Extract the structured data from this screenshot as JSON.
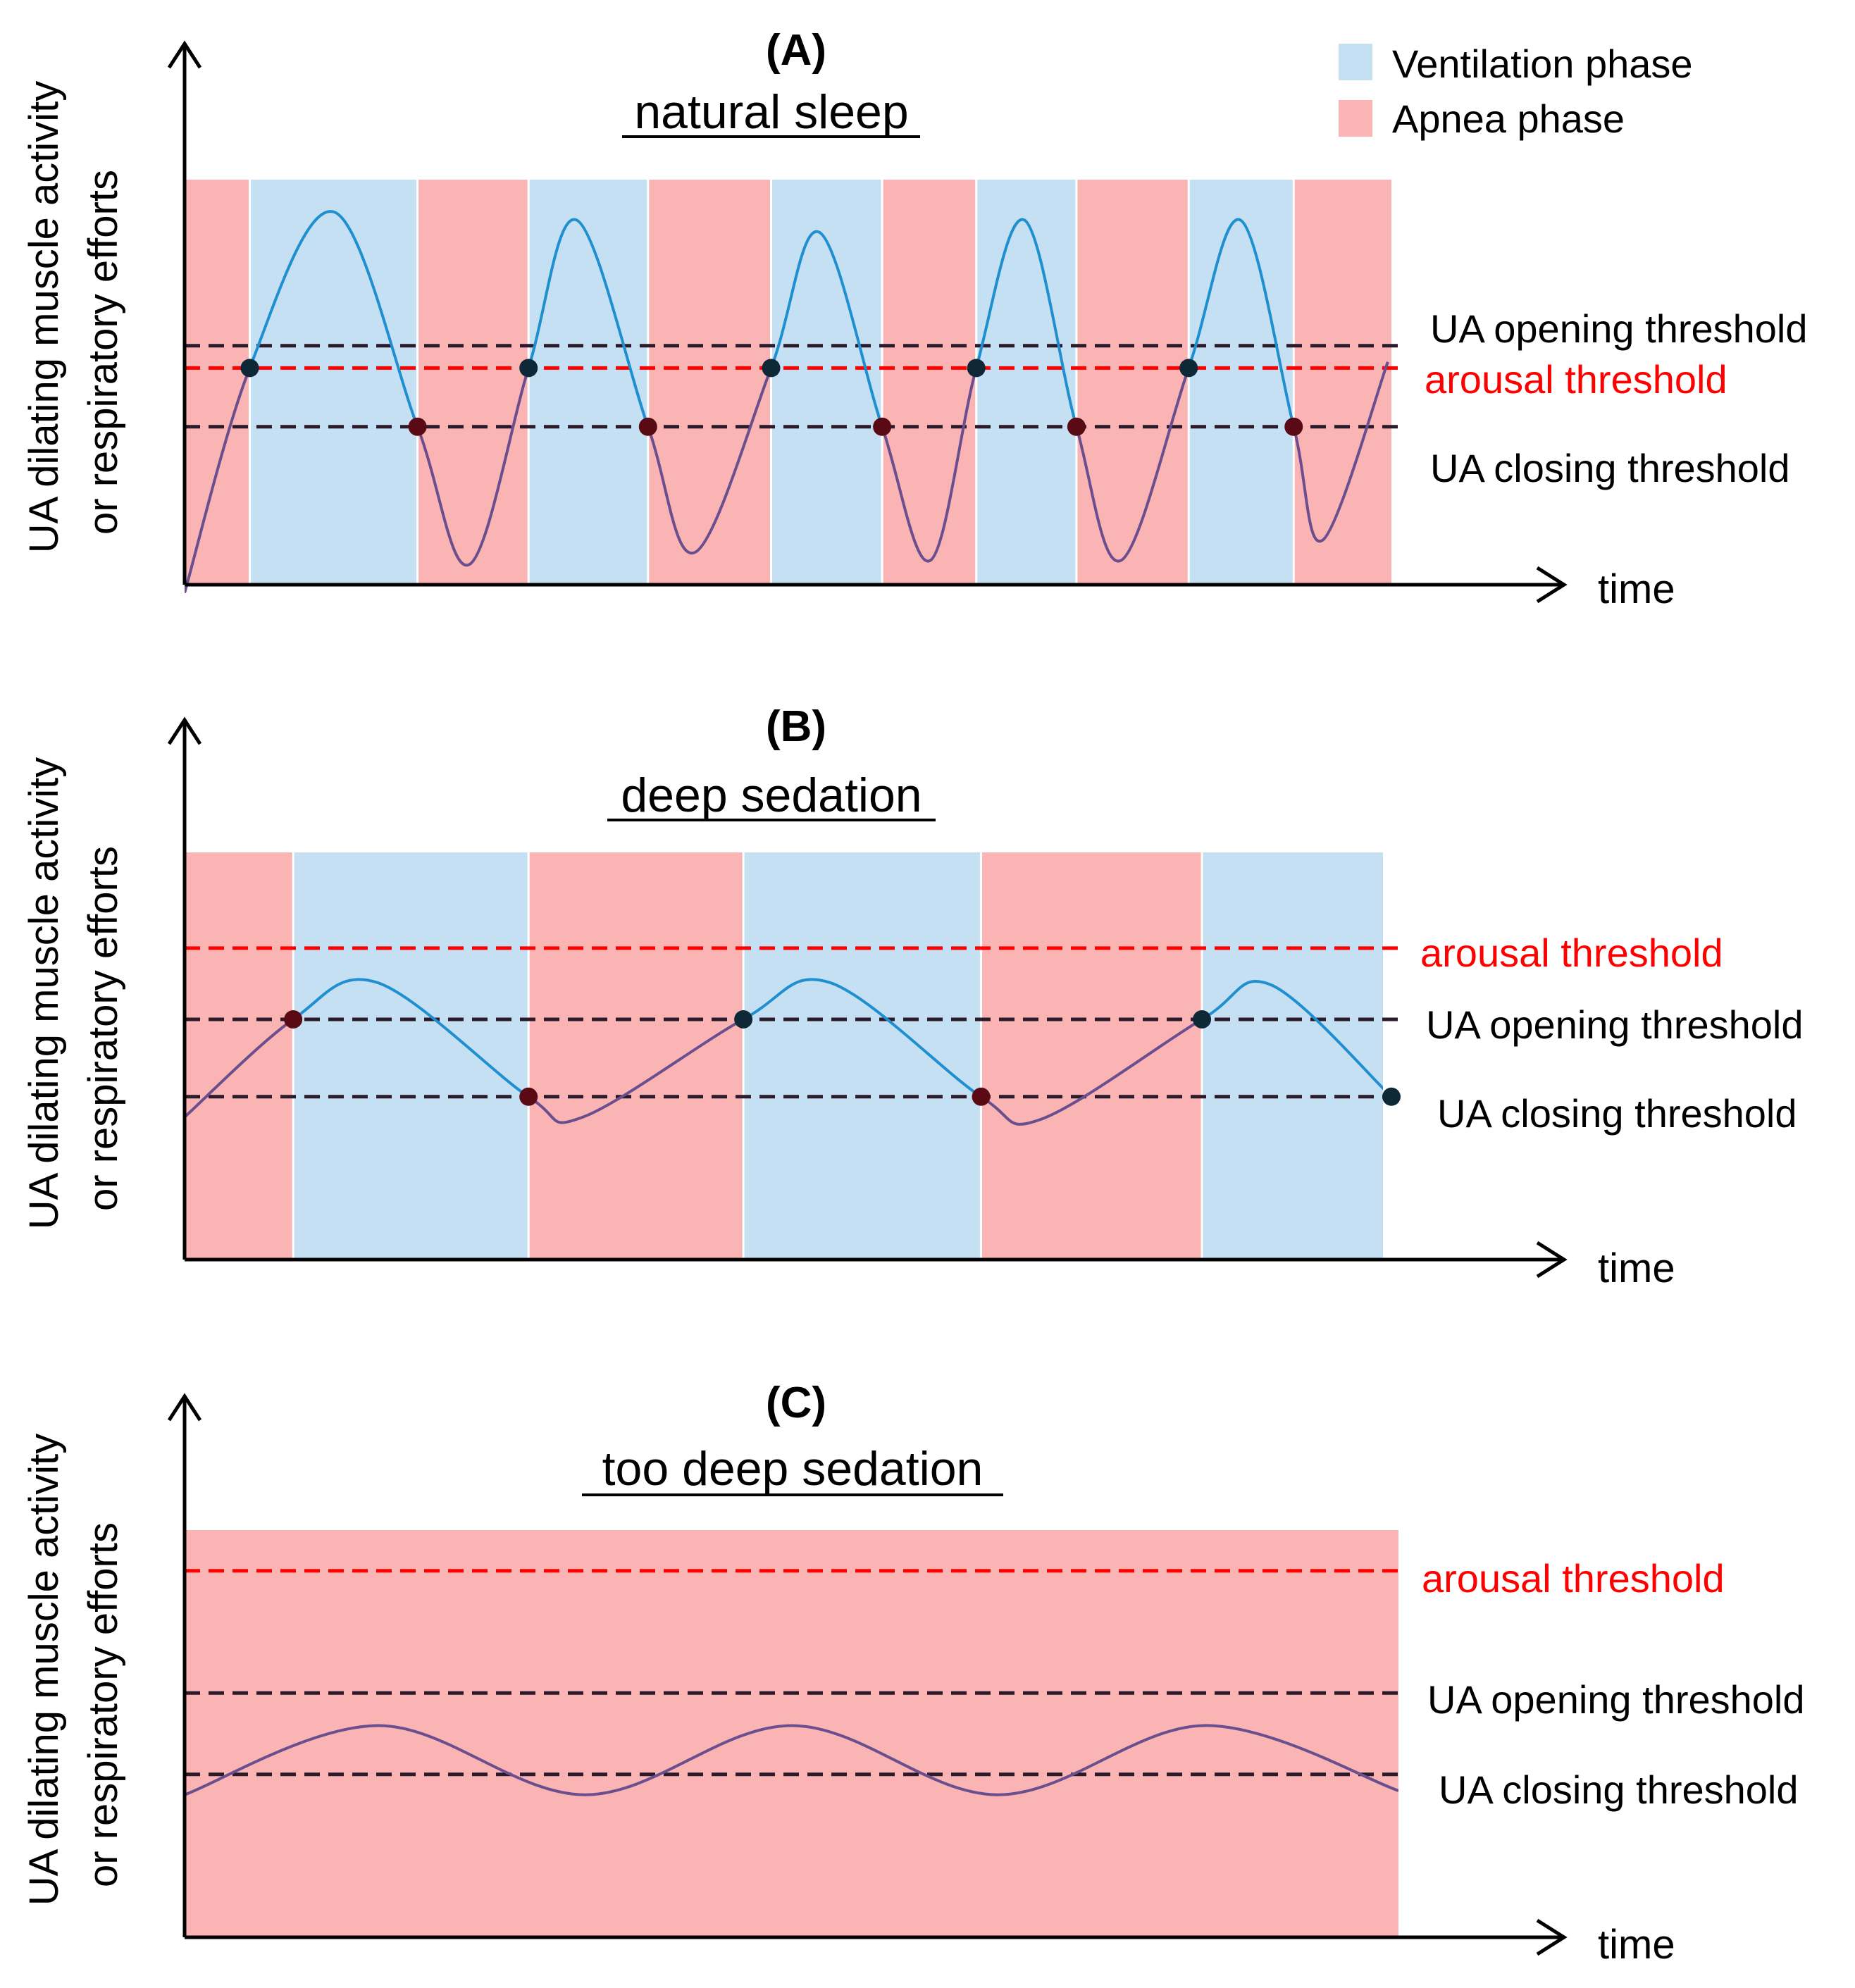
{
  "legend": {
    "ventilation": {
      "label": "Ventilation phase",
      "color": "#c5e0f3"
    },
    "apnea": {
      "label": "Apnea phase",
      "color": "#fbb4b4"
    }
  },
  "colors": {
    "axis": "#000000",
    "arousal_line": "#ff0000",
    "threshold_line": "#2a1a2a",
    "curve_ventilation": "#1f8fd0",
    "curve_apnea": "#6a4e8e",
    "point_open": "#0f2838",
    "point_close": "#5a0a14"
  },
  "panels": [
    {
      "id": "A",
      "title": "(A)",
      "subtitle": "natural sleep",
      "y_label_line1": "UA dilating muscle activity",
      "y_label_line2": "or respiratory efforts",
      "x_label": "time",
      "thresholds": [
        {
          "key": "opening",
          "label": "UA opening threshold",
          "value": 0.59,
          "red": false
        },
        {
          "key": "arousal",
          "label": "arousal threshold",
          "value": 0.535,
          "red": true
        },
        {
          "key": "closing",
          "label": "UA closing threshold",
          "value": 0.39,
          "red": false
        }
      ],
      "phases": [
        {
          "type": "apnea",
          "start": 0.0,
          "end": 0.054
        },
        {
          "type": "ventilation",
          "start": 0.054,
          "end": 0.193
        },
        {
          "type": "apnea",
          "start": 0.193,
          "end": 0.285
        },
        {
          "type": "ventilation",
          "start": 0.285,
          "end": 0.384
        },
        {
          "type": "apnea",
          "start": 0.384,
          "end": 0.486
        },
        {
          "type": "ventilation",
          "start": 0.486,
          "end": 0.578
        },
        {
          "type": "apnea",
          "start": 0.578,
          "end": 0.656
        },
        {
          "type": "ventilation",
          "start": 0.656,
          "end": 0.739
        },
        {
          "type": "apnea",
          "start": 0.739,
          "end": 0.832
        },
        {
          "type": "ventilation",
          "start": 0.832,
          "end": 0.919
        },
        {
          "type": "apnea",
          "start": 0.919,
          "end": 1.0
        }
      ],
      "curve": [
        [
          0.0,
          -0.02
        ],
        [
          0.054,
          0.535
        ],
        [
          0.124,
          0.92
        ],
        [
          0.193,
          0.39
        ],
        [
          0.236,
          0.05
        ],
        [
          0.285,
          0.535
        ],
        [
          0.325,
          0.9
        ],
        [
          0.384,
          0.39
        ],
        [
          0.423,
          0.08
        ],
        [
          0.486,
          0.535
        ],
        [
          0.526,
          0.87
        ],
        [
          0.578,
          0.39
        ],
        [
          0.618,
          0.06
        ],
        [
          0.656,
          0.535
        ],
        [
          0.696,
          0.9
        ],
        [
          0.739,
          0.39
        ],
        [
          0.776,
          0.06
        ],
        [
          0.832,
          0.535
        ],
        [
          0.875,
          0.9
        ],
        [
          0.919,
          0.39
        ],
        [
          0.943,
          0.11
        ],
        [
          0.997,
          0.55
        ]
      ],
      "points": [
        {
          "t": 0.054,
          "kind": "open"
        },
        {
          "t": 0.193,
          "kind": "close"
        },
        {
          "t": 0.285,
          "kind": "open"
        },
        {
          "t": 0.384,
          "kind": "close"
        },
        {
          "t": 0.486,
          "kind": "open"
        },
        {
          "t": 0.578,
          "kind": "close"
        },
        {
          "t": 0.656,
          "kind": "open"
        },
        {
          "t": 0.739,
          "kind": "close"
        },
        {
          "t": 0.832,
          "kind": "open"
        },
        {
          "t": 0.919,
          "kind": "close"
        }
      ]
    },
    {
      "id": "B",
      "title": "(B)",
      "subtitle": "deep sedation",
      "y_label_line1": "UA dilating muscle activity",
      "y_label_line2": "or respiratory efforts",
      "x_label": "time",
      "thresholds": [
        {
          "key": "arousal",
          "label": "arousal threshold",
          "value": 0.765,
          "red": true
        },
        {
          "key": "opening",
          "label": "UA opening threshold",
          "value": 0.59,
          "red": false
        },
        {
          "key": "closing",
          "label": "UA closing threshold",
          "value": 0.4,
          "red": false
        }
      ],
      "phases": [
        {
          "type": "apnea",
          "start": 0.0,
          "end": 0.09
        },
        {
          "type": "ventilation",
          "start": 0.09,
          "end": 0.285
        },
        {
          "type": "apnea",
          "start": 0.285,
          "end": 0.463
        },
        {
          "type": "ventilation",
          "start": 0.463,
          "end": 0.66
        },
        {
          "type": "apnea",
          "start": 0.66,
          "end": 0.843
        },
        {
          "type": "ventilation",
          "start": 0.843,
          "end": 0.993
        }
      ],
      "curve": [
        [
          0.0,
          0.35
        ],
        [
          0.09,
          0.59
        ],
        [
          0.16,
          0.68
        ],
        [
          0.285,
          0.4
        ],
        [
          0.33,
          0.35
        ],
        [
          0.463,
          0.59
        ],
        [
          0.535,
          0.68
        ],
        [
          0.66,
          0.4
        ],
        [
          0.71,
          0.345
        ],
        [
          0.843,
          0.59
        ],
        [
          0.9,
          0.675
        ],
        [
          1.0,
          0.4
        ]
      ],
      "points": [
        {
          "t": 0.09,
          "kind": "close"
        },
        {
          "t": 0.285,
          "kind": "close"
        },
        {
          "t": 0.463,
          "kind": "open"
        },
        {
          "t": 0.66,
          "kind": "close"
        },
        {
          "t": 0.843,
          "kind": "open"
        },
        {
          "t": 1.0,
          "kind": "open"
        }
      ]
    },
    {
      "id": "C",
      "title": "(C)",
      "subtitle": "too deep sedation",
      "y_label_line1": "UA dilating muscle activity",
      "y_label_line2": "or respiratory efforts",
      "x_label": "time",
      "thresholds": [
        {
          "key": "arousal",
          "label": "arousal threshold",
          "value": 0.9,
          "red": true
        },
        {
          "key": "opening",
          "label": "UA opening threshold",
          "value": 0.6,
          "red": false
        },
        {
          "key": "closing",
          "label": "UA closing threshold",
          "value": 0.4,
          "red": false
        }
      ],
      "phases": [
        {
          "type": "apnea",
          "start": 0.0,
          "end": 1.0
        }
      ],
      "curve": [
        [
          0.0,
          0.35
        ],
        [
          0.16,
          0.52
        ],
        [
          0.33,
          0.35
        ],
        [
          0.5,
          0.52
        ],
        [
          0.67,
          0.35
        ],
        [
          0.84,
          0.52
        ],
        [
          1.0,
          0.36
        ]
      ],
      "points": []
    }
  ]
}
